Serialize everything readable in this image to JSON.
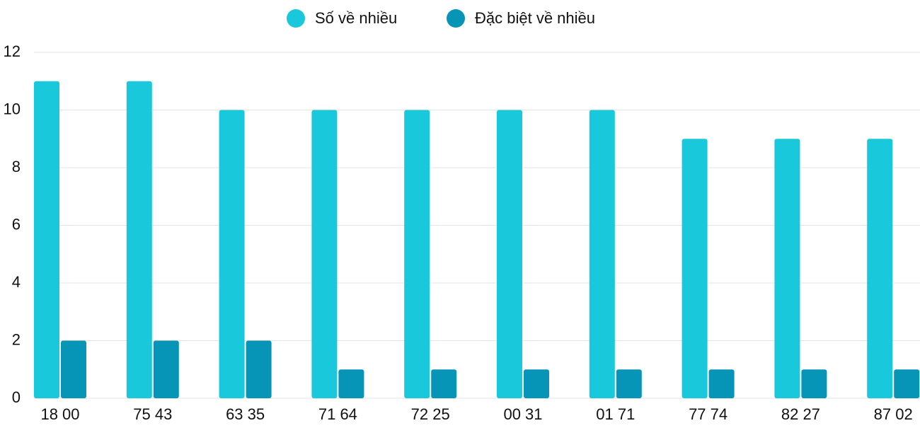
{
  "chart_data": {
    "type": "bar",
    "categories": [
      "18 00",
      "75 43",
      "63 35",
      "71 64",
      "72 25",
      "00 31",
      "01 71",
      "77 74",
      "82 27",
      "87 02"
    ],
    "series": [
      {
        "name": "Số về nhiều",
        "color": "#1ac8db",
        "values": [
          11,
          11,
          10,
          10,
          10,
          10,
          10,
          9,
          9,
          9
        ]
      },
      {
        "name": "Đặc biệt về nhiều",
        "color": "#0795b7",
        "values": [
          2,
          2,
          2,
          1,
          1,
          1,
          1,
          1,
          1,
          1
        ]
      }
    ],
    "ylim": [
      0,
      12
    ],
    "yticks": [
      0,
      2,
      4,
      6,
      8,
      10,
      12
    ],
    "grid": true,
    "legend": "top"
  }
}
